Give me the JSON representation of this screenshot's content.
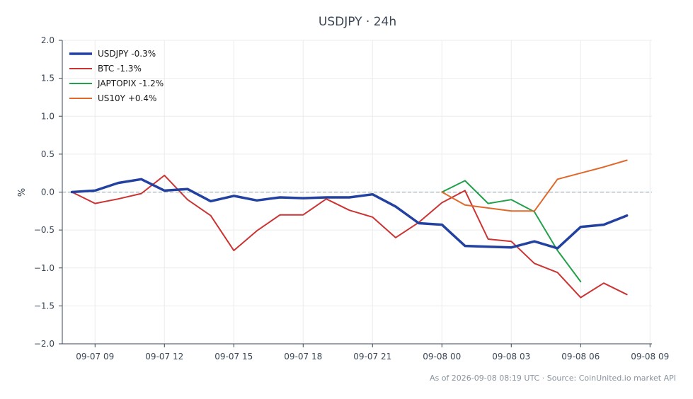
{
  "chart_data": {
    "type": "line",
    "title": "USDJPY · 24h",
    "xlabel": "",
    "ylabel": "%",
    "ylim": [
      -2.0,
      2.0
    ],
    "yticks": [
      2.0,
      1.5,
      1.0,
      0.5,
      0.0,
      -0.5,
      -1.0,
      -1.5,
      -2.0
    ],
    "ytick_labels": [
      "2.0",
      "1.5",
      "1.0",
      "0.5",
      "0.0",
      "−0.5",
      "−1.0",
      "−1.5",
      "−2.0"
    ],
    "xlim": [
      "2026-09-07 07:35",
      "2026-09-08 09:05"
    ],
    "xtick_values": [
      "2026-09-07 09:00",
      "2026-09-07 12:00",
      "2026-09-07 15:00",
      "2026-09-07 18:00",
      "2026-09-07 21:00",
      "2026-09-08 00:00",
      "2026-09-08 03:00",
      "2026-09-08 06:00",
      "2026-09-08 09:00"
    ],
    "xtick_labels": [
      "09-07 09",
      "09-07 12",
      "09-07 15",
      "09-07 18",
      "09-07 21",
      "09-08 00",
      "09-08 03",
      "09-08 06",
      "09-08 09"
    ],
    "grid": true,
    "zero_line": true,
    "legend_position": "top-left",
    "series": [
      {
        "name": "USDJPY -0.3%",
        "color": "#2241a0",
        "x": [
          "2026-09-07 08:00",
          "2026-09-07 09:00",
          "2026-09-07 10:00",
          "2026-09-07 11:00",
          "2026-09-07 12:00",
          "2026-09-07 13:00",
          "2026-09-07 14:00",
          "2026-09-07 15:00",
          "2026-09-07 16:00",
          "2026-09-07 17:00",
          "2026-09-07 18:00",
          "2026-09-07 19:00",
          "2026-09-07 20:00",
          "2026-09-07 21:00",
          "2026-09-07 22:00",
          "2026-09-07 23:00",
          "2026-09-08 00:00",
          "2026-09-08 01:00",
          "2026-09-08 02:00",
          "2026-09-08 03:00",
          "2026-09-08 04:00",
          "2026-09-08 05:00",
          "2026-09-08 06:00",
          "2026-09-08 07:00",
          "2026-09-08 08:00"
        ],
        "values": [
          0.0,
          0.02,
          0.12,
          0.17,
          0.02,
          0.04,
          -0.12,
          -0.05,
          -0.11,
          -0.07,
          -0.08,
          -0.07,
          -0.07,
          -0.03,
          -0.19,
          -0.41,
          -0.43,
          -0.71,
          -0.72,
          -0.73,
          -0.65,
          -0.74,
          -0.46,
          -0.43,
          -0.31
        ]
      },
      {
        "name": "BTC -1.3%",
        "color": "#cc3333",
        "x": [
          "2026-09-07 08:00",
          "2026-09-07 09:00",
          "2026-09-07 10:00",
          "2026-09-07 11:00",
          "2026-09-07 12:00",
          "2026-09-07 13:00",
          "2026-09-07 14:00",
          "2026-09-07 15:00",
          "2026-09-07 16:00",
          "2026-09-07 17:00",
          "2026-09-07 18:00",
          "2026-09-07 19:00",
          "2026-09-07 20:00",
          "2026-09-07 21:00",
          "2026-09-07 22:00",
          "2026-09-07 23:00",
          "2026-09-08 00:00",
          "2026-09-08 01:00",
          "2026-09-08 02:00",
          "2026-09-08 03:00",
          "2026-09-08 04:00",
          "2026-09-08 05:00",
          "2026-09-08 06:00",
          "2026-09-08 07:00",
          "2026-09-08 08:00"
        ],
        "values": [
          0.0,
          -0.15,
          -0.09,
          -0.02,
          0.22,
          -0.1,
          -0.31,
          -0.77,
          -0.51,
          -0.3,
          -0.3,
          -0.09,
          -0.24,
          -0.33,
          -0.6,
          -0.4,
          -0.14,
          0.02,
          -0.62,
          -0.65,
          -0.94,
          -1.06,
          -1.39,
          -1.2,
          -1.35
        ]
      },
      {
        "name": "JAPTOPIX -1.2%",
        "color": "#22a04b",
        "x": [
          "2026-09-08 00:00",
          "2026-09-08 01:00",
          "2026-09-08 02:00",
          "2026-09-08 03:00",
          "2026-09-08 04:00",
          "2026-09-08 05:00",
          "2026-09-08 06:00"
        ],
        "values": [
          0.0,
          0.15,
          -0.15,
          -0.1,
          -0.26,
          -0.77,
          -1.18
        ]
      },
      {
        "name": "US10Y +0.4%",
        "color": "#e0682a",
        "x": [
          "2026-09-08 00:00",
          "2026-09-08 01:00",
          "2026-09-08 02:00",
          "2026-09-08 03:00",
          "2026-09-08 04:00",
          "2026-09-08 05:00",
          "2026-09-08 06:00",
          "2026-09-08 07:00",
          "2026-09-08 08:00"
        ],
        "values": [
          0.0,
          -0.17,
          -0.21,
          -0.25,
          -0.25,
          0.17,
          0.25,
          0.33,
          0.42
        ]
      }
    ]
  },
  "footer": {
    "note": "As of 2026-09-08 08:19 UTC · Source: CoinUnited.io market API"
  }
}
